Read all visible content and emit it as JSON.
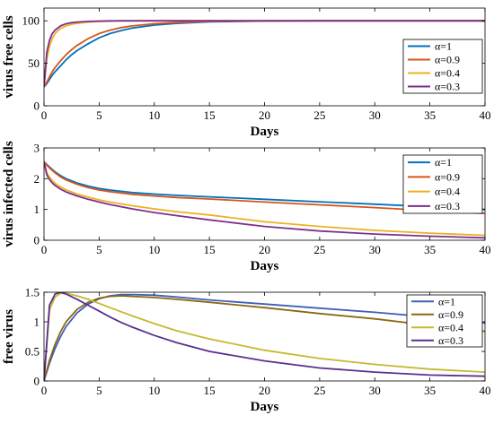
{
  "chart_data": [
    {
      "type": "line",
      "xlabel": "Days",
      "ylabel": "virus free cells",
      "xlim": [
        0,
        40
      ],
      "ylim": [
        0,
        115
      ],
      "xticks": [
        "0",
        "5",
        "10",
        "15",
        "20",
        "25",
        "30",
        "35",
        "40"
      ],
      "yticks": [
        "0",
        "50",
        "100"
      ],
      "ytick_values": [
        0,
        50,
        100
      ],
      "legend_position": "right",
      "x": [
        0,
        0.25,
        0.5,
        0.75,
        1,
        1.5,
        2,
        2.5,
        3,
        4,
        5,
        6,
        7,
        8,
        10,
        12,
        15,
        20,
        25,
        30,
        35,
        40
      ],
      "series": [
        {
          "name": "α=1",
          "color": "#0072BD",
          "values": [
            22,
            26,
            31,
            36,
            40,
            47,
            54,
            60,
            65,
            73,
            80,
            85,
            88.5,
            91.5,
            95,
            97,
            98.8,
            99.7,
            100,
            100,
            100,
            100
          ]
        },
        {
          "name": "α=0.9",
          "color": "#D95319",
          "values": [
            22,
            28,
            34,
            40,
            45,
            53,
            60,
            66,
            71,
            79,
            85,
            89,
            92,
            94,
            96.5,
            98,
            99.3,
            99.9,
            100,
            100,
            100,
            100
          ]
        },
        {
          "name": "α=0.4",
          "color": "#EDB120",
          "values": [
            22,
            55,
            70,
            79,
            85,
            91,
            94,
            96,
            97,
            98.5,
            99.2,
            99.6,
            99.8,
            99.9,
            100,
            100,
            100,
            100,
            100,
            100,
            100,
            100
          ]
        },
        {
          "name": "α=0.3",
          "color": "#7E2F8E",
          "values": [
            22,
            63,
            77,
            85,
            89,
            94,
            96.5,
            97.8,
            98.5,
            99.3,
            99.7,
            99.9,
            100,
            100,
            100,
            100,
            100,
            100,
            100,
            100,
            100,
            100
          ]
        }
      ]
    },
    {
      "type": "line",
      "xlabel": "Days",
      "ylabel": "virus infected cells",
      "xlim": [
        0,
        40
      ],
      "ylim": [
        0,
        3
      ],
      "xticks": [
        "0",
        "5",
        "10",
        "15",
        "20",
        "25",
        "30",
        "35",
        "40"
      ],
      "yticks": [
        "0",
        "1",
        "2",
        "3"
      ],
      "ytick_values": [
        0,
        1,
        2,
        3
      ],
      "legend_position": "right",
      "x": [
        0,
        0.25,
        0.5,
        0.75,
        1,
        1.5,
        2,
        3,
        4,
        5,
        6,
        8,
        10,
        12,
        15,
        20,
        25,
        30,
        35,
        40
      ],
      "series": [
        {
          "name": "α=1",
          "color": "#0072BD",
          "values": [
            2.55,
            2.46,
            2.38,
            2.3,
            2.22,
            2.1,
            2.0,
            1.86,
            1.76,
            1.68,
            1.63,
            1.55,
            1.5,
            1.46,
            1.41,
            1.33,
            1.25,
            1.17,
            1.09,
            1.0
          ]
        },
        {
          "name": "α=0.9",
          "color": "#D95319",
          "values": [
            2.55,
            2.44,
            2.35,
            2.27,
            2.19,
            2.06,
            1.96,
            1.82,
            1.71,
            1.63,
            1.58,
            1.49,
            1.44,
            1.39,
            1.34,
            1.24,
            1.15,
            1.06,
            0.96,
            0.87
          ]
        },
        {
          "name": "α=0.4",
          "color": "#EDB120",
          "values": [
            2.55,
            2.2,
            2.05,
            1.94,
            1.85,
            1.73,
            1.64,
            1.5,
            1.4,
            1.31,
            1.24,
            1.12,
            1.02,
            0.93,
            0.82,
            0.6,
            0.45,
            0.32,
            0.23,
            0.16
          ]
        },
        {
          "name": "α=0.3",
          "color": "#7E2F8E",
          "values": [
            2.55,
            2.12,
            1.97,
            1.86,
            1.78,
            1.66,
            1.57,
            1.44,
            1.33,
            1.24,
            1.16,
            1.02,
            0.9,
            0.8,
            0.66,
            0.45,
            0.3,
            0.2,
            0.13,
            0.08
          ]
        }
      ]
    },
    {
      "type": "line",
      "xlabel": "Days",
      "ylabel": "free virus",
      "xlim": [
        0,
        40
      ],
      "ylim": [
        0,
        1.5
      ],
      "xticks": [
        "0",
        "5",
        "10",
        "15",
        "20",
        "25",
        "30",
        "35",
        "40"
      ],
      "yticks": [
        "0",
        "0.5",
        "1",
        "1.5"
      ],
      "ytick_values": [
        0,
        0.5,
        1,
        1.5
      ],
      "legend_position": "right",
      "x": [
        0,
        0.5,
        1,
        1.5,
        2,
        3,
        4,
        5,
        6,
        7,
        8,
        10,
        12,
        15,
        20,
        25,
        30,
        35,
        40
      ],
      "series": [
        {
          "name": "α=1",
          "color": "#4060B8",
          "values": [
            0,
            0.3,
            0.55,
            0.75,
            0.92,
            1.15,
            1.3,
            1.39,
            1.44,
            1.46,
            1.46,
            1.45,
            1.42,
            1.37,
            1.3,
            1.23,
            1.16,
            1.08,
            0.98
          ]
        },
        {
          "name": "α=0.9",
          "color": "#8B6914",
          "values": [
            0,
            0.35,
            0.62,
            0.83,
            1.0,
            1.21,
            1.33,
            1.4,
            1.43,
            1.44,
            1.43,
            1.41,
            1.38,
            1.33,
            1.24,
            1.14,
            1.05,
            0.94,
            0.84
          ]
        },
        {
          "name": "α=0.4",
          "color": "#C8B830",
          "values": [
            0,
            1.2,
            1.42,
            1.48,
            1.48,
            1.44,
            1.38,
            1.31,
            1.24,
            1.17,
            1.1,
            0.97,
            0.85,
            0.71,
            0.52,
            0.38,
            0.28,
            0.2,
            0.15
          ]
        },
        {
          "name": "α=0.3",
          "color": "#5B2F8E",
          "values": [
            0,
            1.28,
            1.47,
            1.5,
            1.47,
            1.38,
            1.28,
            1.18,
            1.08,
            0.99,
            0.91,
            0.77,
            0.65,
            0.5,
            0.34,
            0.22,
            0.15,
            0.1,
            0.08
          ]
        }
      ]
    }
  ]
}
